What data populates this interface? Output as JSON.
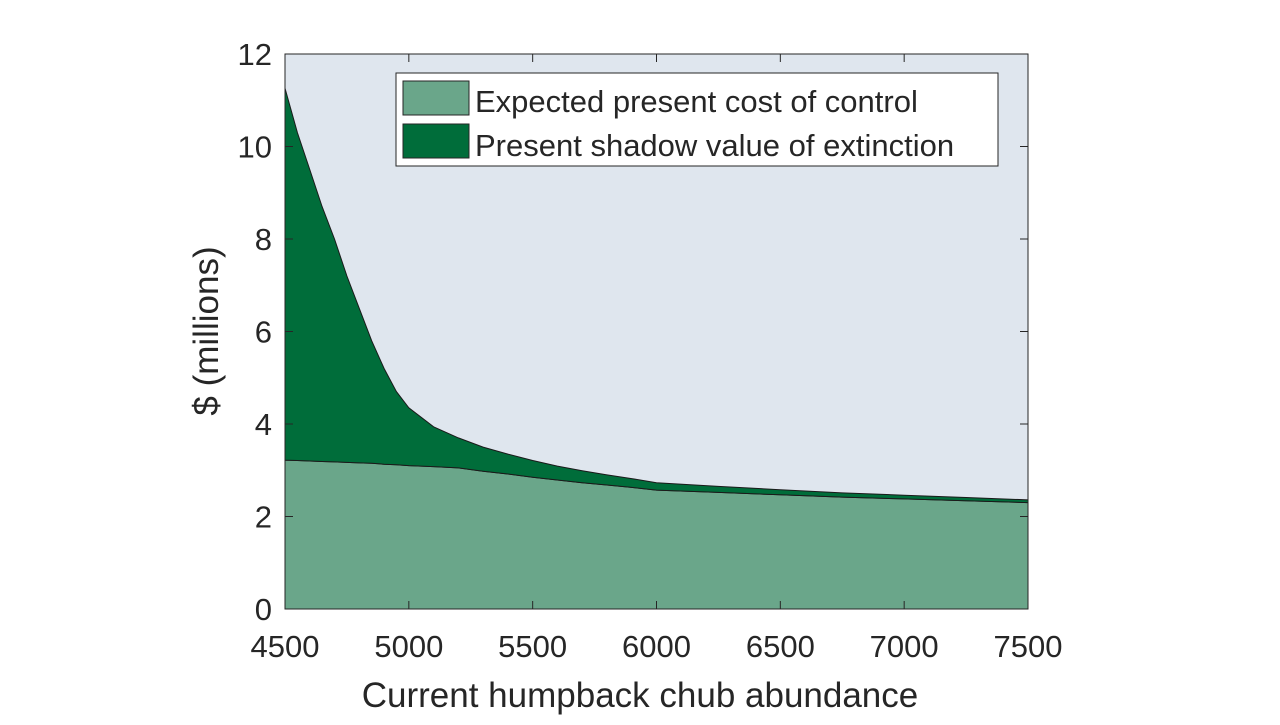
{
  "chart_data": {
    "type": "area",
    "stacked": true,
    "title": "",
    "xlabel": "Current humpback chub abundance",
    "ylabel": "$ (millions)",
    "xlim": [
      4500,
      7500
    ],
    "ylim": [
      0,
      12
    ],
    "xticks": [
      4500,
      5000,
      5500,
      6000,
      6500,
      7000,
      7500
    ],
    "yticks": [
      0,
      2,
      4,
      6,
      8,
      10,
      12
    ],
    "grid": false,
    "legend_position": "top-right",
    "x": [
      4500,
      4550,
      4600,
      4650,
      4700,
      4750,
      4800,
      4850,
      4900,
      4950,
      5000,
      5100,
      5200,
      5300,
      5400,
      5500,
      5600,
      5700,
      5800,
      5900,
      6000,
      6250,
      6500,
      6750,
      7000,
      7250,
      7500
    ],
    "series": [
      {
        "name": "Expected present cost of control",
        "color": "#6aa68a",
        "values": [
          3.22,
          3.21,
          3.2,
          3.19,
          3.18,
          3.17,
          3.16,
          3.15,
          3.13,
          3.12,
          3.1,
          3.08,
          3.05,
          2.98,
          2.92,
          2.85,
          2.79,
          2.73,
          2.68,
          2.63,
          2.57,
          2.52,
          2.47,
          2.42,
          2.38,
          2.34,
          2.3
        ]
      },
      {
        "name": "Present shadow value of extinction",
        "color": "#006d3a",
        "values": [
          8.04,
          7.09,
          6.3,
          5.51,
          4.82,
          4.03,
          3.34,
          2.65,
          2.07,
          1.58,
          1.25,
          0.86,
          0.65,
          0.52,
          0.43,
          0.36,
          0.3,
          0.26,
          0.22,
          0.19,
          0.16,
          0.13,
          0.11,
          0.09,
          0.08,
          0.07,
          0.06
        ]
      }
    ]
  }
}
